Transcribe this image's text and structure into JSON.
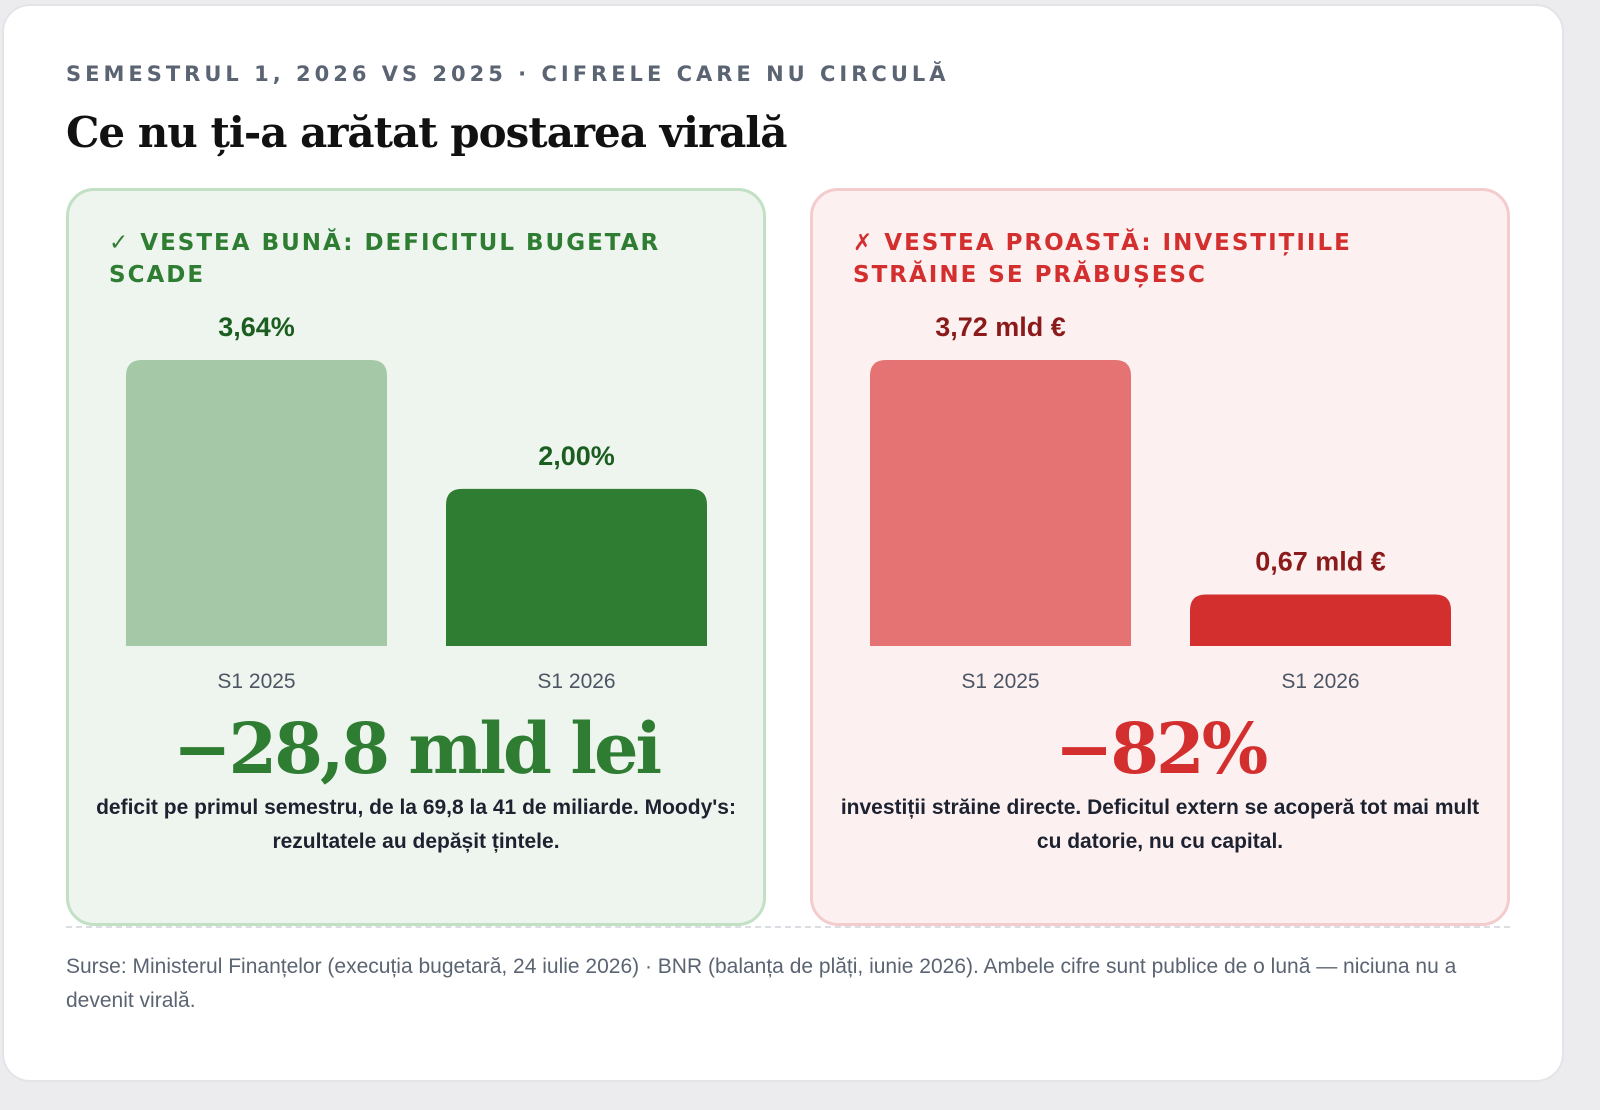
{
  "header": {
    "kicker": "SEMESTRUL 1, 2026 VS 2025 · CIFRELE CARE NU CIRCULĂ",
    "title": "Ce nu ți-a arătat postarea virală"
  },
  "panels": {
    "good": {
      "heading": "✓ VESTEA BUNĂ: DEFICITUL BUGETAR SCADE",
      "big_number": "−28,8 mld lei",
      "description": "deficit pe primul semestru, de la 69,8 la 41 de miliarde. Moody's: rezultatele au depășit țintele."
    },
    "bad": {
      "heading": "✗ VESTEA PROASTĂ: INVESTIȚIILE STRĂINE SE PRĂBUȘESC",
      "big_number": "−82%",
      "description": "investiții străine directe. Deficitul extern se acoperă tot mai mult cu datorie, nu cu capital."
    }
  },
  "footer": {
    "sources": "Surse: Ministerul Finanțelor (execuția bugetară, 24 iulie 2026) · BNR (balanța de plăți, iunie 2026). Ambele cifre sunt publice de o lună — niciuna nu a devenit virală."
  },
  "chart_data": [
    {
      "type": "bar",
      "categories": [
        "S1 2025",
        "S1 2026"
      ],
      "values": [
        3.64,
        2.0
      ],
      "value_labels": [
        "3,64%",
        "2,00%"
      ],
      "ylim": [
        0,
        3.64
      ],
      "colors": [
        "#a5c8a7",
        "#2e7d32"
      ],
      "label_color": "#1b5e20"
    },
    {
      "type": "bar",
      "categories": [
        "S1 2025",
        "S1 2026"
      ],
      "values": [
        3.72,
        0.67
      ],
      "value_labels": [
        "3,72 mld €",
        "0,67 mld €"
      ],
      "ylim": [
        0,
        3.72
      ],
      "colors": [
        "#e57373",
        "#d32f2f"
      ],
      "label_color": "#8b1a1a"
    }
  ]
}
